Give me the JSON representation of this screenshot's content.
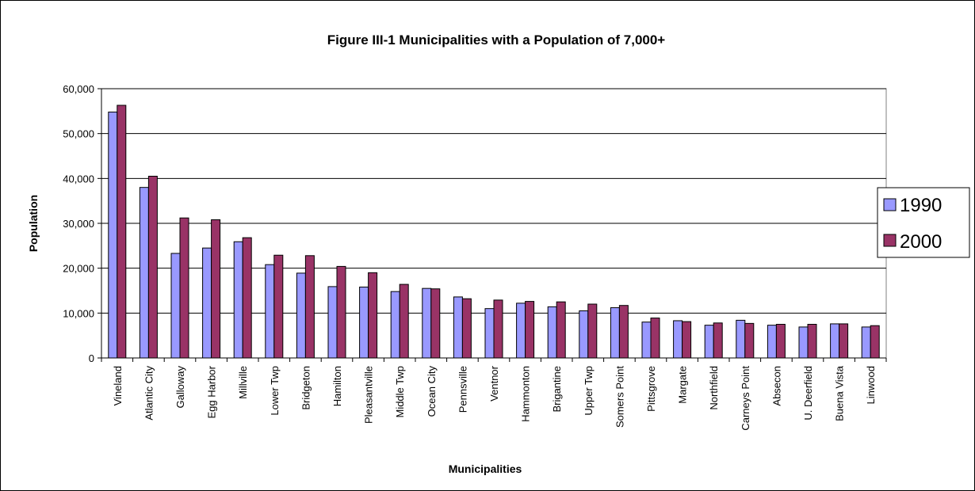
{
  "chart_data": {
    "type": "bar",
    "title": "Figure III-1 Municipalities with a Population of 7,000+",
    "xlabel": "Municipalities",
    "ylabel": "Population",
    "ylim": [
      0,
      60000
    ],
    "yticks": [
      0,
      10000,
      20000,
      30000,
      40000,
      50000,
      60000
    ],
    "ytick_labels": [
      "0",
      "10,000",
      "20,000",
      "30,000",
      "40,000",
      "50,000",
      "60,000"
    ],
    "grid": true,
    "legend_position": "right",
    "categories": [
      "Vineland",
      "Atlantic City",
      "Galloway",
      "Egg Harbor",
      "Millville",
      "Lower Twp",
      "Bridgeton",
      "Hamilton",
      "Pleasantville",
      "Middle Twp",
      "Ocean City",
      "Pennsville",
      "Ventnor",
      "Hammonton",
      "Brigantine",
      "Upper Twp",
      "Somers Point",
      "Pittsgrove",
      "Margate",
      "Northfield",
      "Carneys Point",
      "Absecon",
      "U. Deerfield",
      "Buena Vista",
      "Linwood"
    ],
    "series": [
      {
        "name": "1990",
        "color": "#9999ff",
        "values": [
          54800,
          38000,
          23300,
          24500,
          25900,
          20800,
          18900,
          15900,
          15800,
          14800,
          15500,
          13600,
          11000,
          12200,
          11400,
          10500,
          11200,
          8000,
          8300,
          7300,
          8400,
          7300,
          6900,
          7600,
          6900
        ]
      },
      {
        "name": "2000",
        "color": "#993366",
        "values": [
          56300,
          40500,
          31200,
          30800,
          26800,
          22900,
          22800,
          20400,
          19000,
          16400,
          15400,
          13200,
          12900,
          12600,
          12500,
          12000,
          11700,
          8900,
          8100,
          7800,
          7700,
          7500,
          7500,
          7600,
          7200
        ]
      }
    ]
  }
}
